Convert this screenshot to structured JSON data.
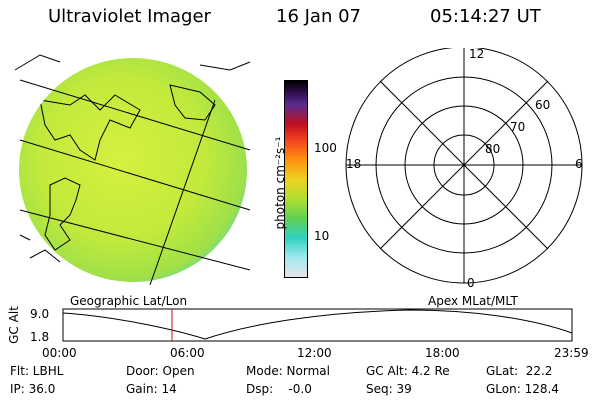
{
  "header": {
    "instrument": "Ultraviolet Imager",
    "date": "16 Jan 07",
    "time": "05:14:27 UT"
  },
  "colorbar": {
    "label": "photon cm⁻²s⁻¹",
    "ticks": [
      "100",
      "10"
    ]
  },
  "polar": {
    "mlt_labels": {
      "top": "12",
      "right": "6",
      "bottom": "0",
      "left": "18"
    },
    "lat_labels": [
      "60",
      "70",
      "80"
    ]
  },
  "projection_labels": {
    "left": "Geographic Lat/Lon",
    "right": "Apex MLat/MLT"
  },
  "altitude_panel": {
    "axis_label": "GC Alt",
    "y_ticks": [
      "9.0",
      "1.8"
    ],
    "x_ticks": [
      "00:00",
      "06:00",
      "12:00",
      "18:00",
      "23:59"
    ],
    "current_time_marker": "05:14"
  },
  "status": {
    "filter": "Flt: LBHL",
    "ip": "IP: 36.0",
    "door": "Door: Open",
    "gain": "Gain: 14",
    "mode": "Mode: Normal",
    "dsp": "Dsp:    -0.0",
    "gc_alt": "GC Alt: 4.2 Re",
    "seq": "Seq: 39",
    "glat": "GLat:  22.2",
    "glon": "GLon: 128.4"
  }
}
